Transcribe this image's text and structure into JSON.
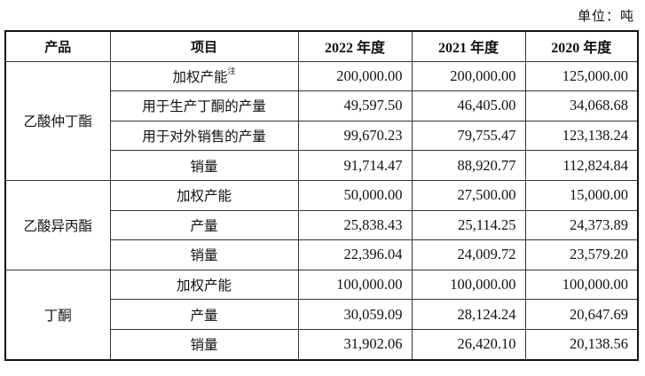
{
  "unit_label": "单位：吨",
  "headers": {
    "product": "产品",
    "item": "项目",
    "y2022": "2022 年度",
    "y2021": "2021 年度",
    "y2020": "2020 年度"
  },
  "groups": [
    {
      "product": "乙酸仲丁酯",
      "rows": [
        {
          "item": "加权产能",
          "note": "注",
          "v2022": "200,000.00",
          "v2021": "200,000.00",
          "v2020": "125,000.00"
        },
        {
          "item": "用于生产丁酮的产量",
          "note": "",
          "v2022": "49,597.50",
          "v2021": "46,405.00",
          "v2020": "34,068.68"
        },
        {
          "item": "用于对外销售的产量",
          "note": "",
          "v2022": "99,670.23",
          "v2021": "79,755.47",
          "v2020": "123,138.24"
        },
        {
          "item": "销量",
          "note": "",
          "v2022": "91,714.47",
          "v2021": "88,920.77",
          "v2020": "112,824.84"
        }
      ]
    },
    {
      "product": "乙酸异丙酯",
      "rows": [
        {
          "item": "加权产能",
          "note": "",
          "v2022": "50,000.00",
          "v2021": "27,500.00",
          "v2020": "15,000.00"
        },
        {
          "item": "产量",
          "note": "",
          "v2022": "25,838.43",
          "v2021": "25,114.25",
          "v2020": "24,373.89"
        },
        {
          "item": "销量",
          "note": "",
          "v2022": "22,396.04",
          "v2021": "24,009.72",
          "v2020": "23,579.20"
        }
      ]
    },
    {
      "product": "丁酮",
      "rows": [
        {
          "item": "加权产能",
          "note": "",
          "v2022": "100,000.00",
          "v2021": "100,000.00",
          "v2020": "100,000.00"
        },
        {
          "item": "产量",
          "note": "",
          "v2022": "30,059.09",
          "v2021": "28,124.24",
          "v2020": "20,647.69"
        },
        {
          "item": "销量",
          "note": "",
          "v2022": "31,902.06",
          "v2021": "26,420.10",
          "v2020": "20,138.56"
        }
      ]
    }
  ]
}
